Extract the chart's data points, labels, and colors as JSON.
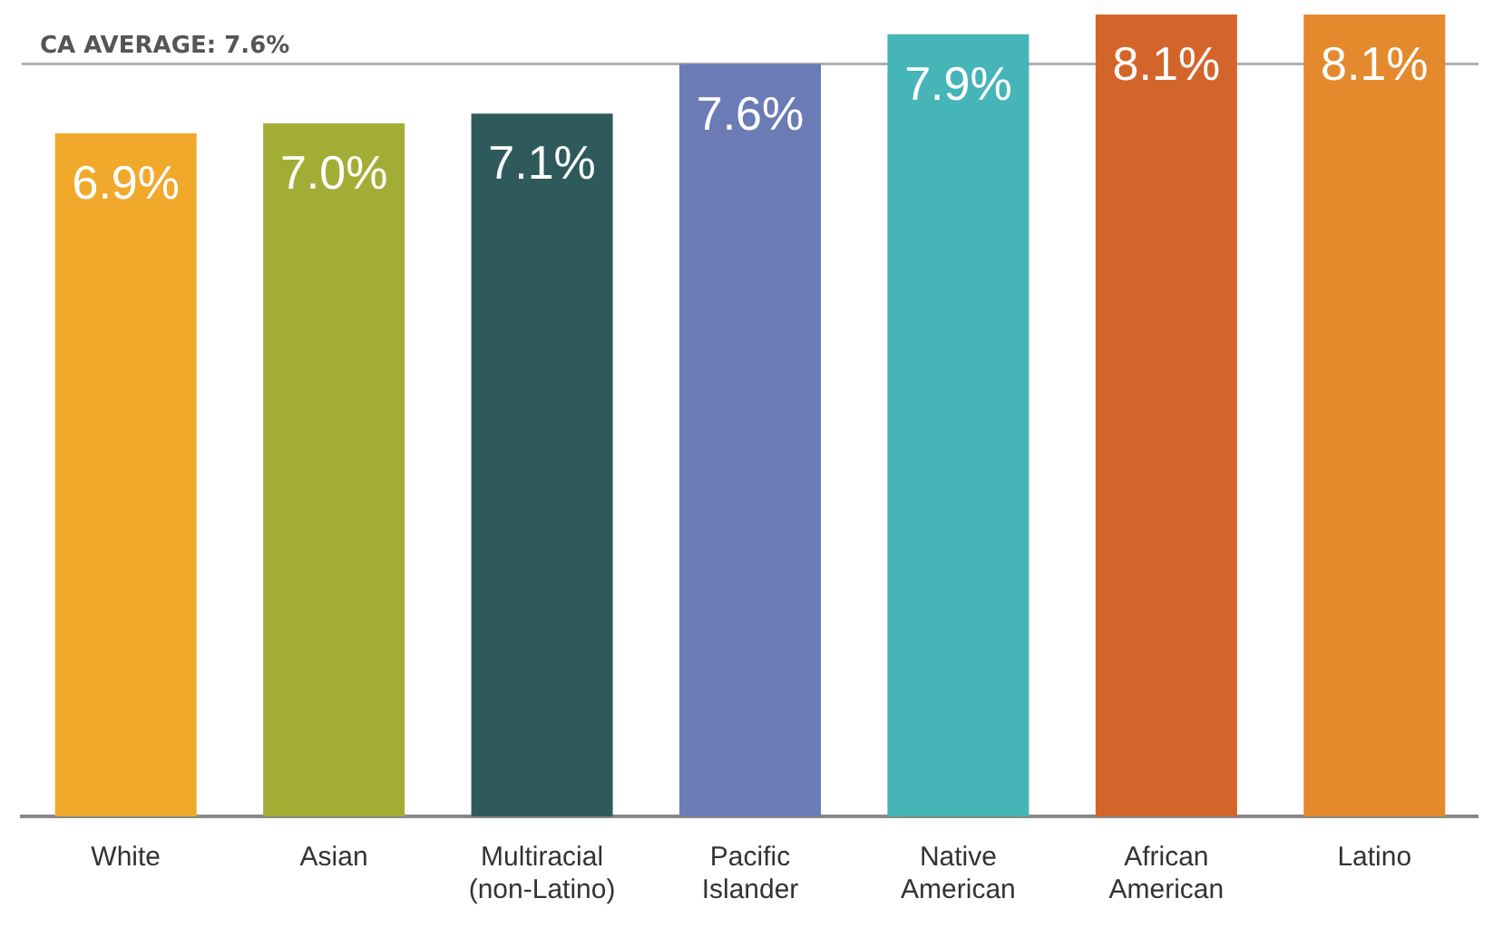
{
  "chart_data": {
    "type": "bar",
    "categories": [
      "White",
      "Asian",
      "Multiracial (non-Latino)",
      "Pacific Islander",
      "Native American",
      "African American",
      "Latino"
    ],
    "values": [
      6.9,
      7.0,
      7.1,
      7.6,
      7.9,
      8.1,
      8.1
    ],
    "colors": [
      "#f0a92b",
      "#a3ad35",
      "#2f5a5c",
      "#6a7bb5",
      "#45b5b8",
      "#d4652a",
      "#e48a2c"
    ],
    "value_labels": [
      "6.9%",
      "7.0%",
      "7.1%",
      "7.6%",
      "7.9%",
      "8.1%",
      "8.1%"
    ],
    "ylim": [
      0,
      8.1
    ],
    "ref_lines": [
      {
        "axis": "y",
        "value": 7.6,
        "label": "CA AVERAGE: 7.6%",
        "color": "#b0b0b0"
      }
    ],
    "grid": false,
    "legend": false
  }
}
